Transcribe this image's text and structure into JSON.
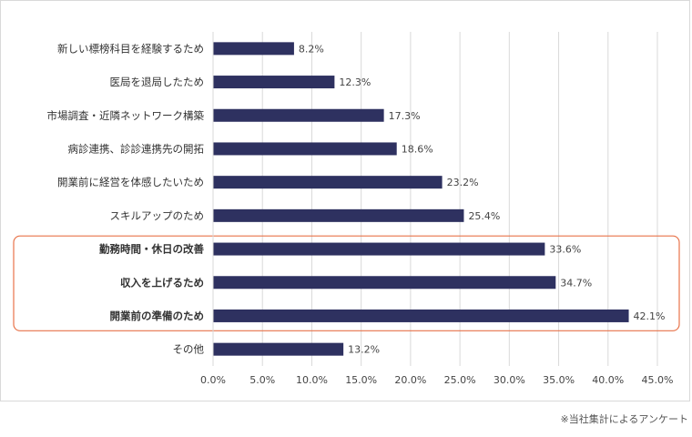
{
  "chart_data": {
    "type": "bar",
    "orientation": "horizontal",
    "categories": [
      "新しい標榜科目を経験するため",
      "医局を退局したため",
      "市場調査・近隣ネットワーク構築",
      "病診連携、診診連携先の開拓",
      "開業前に経営を体感したいため",
      "スキルアップのため",
      "勤務時間・休日の改善",
      "収入を上げるため",
      "開業前の準備のため",
      "その他"
    ],
    "values": [
      8.2,
      12.3,
      17.3,
      18.6,
      23.2,
      25.4,
      33.6,
      34.7,
      42.1,
      13.2
    ],
    "value_labels": [
      "8.2%",
      "12.3%",
      "17.3%",
      "18.6%",
      "23.2%",
      "25.4%",
      "33.6%",
      "34.7%",
      "42.1%",
      "13.2%"
    ],
    "bold_categories": [
      "勤務時間・休日の改善",
      "収入を上げるため",
      "開業前の準備のため"
    ],
    "highlight_group": [
      "勤務時間・休日の改善",
      "収入を上げるため",
      "開業前の準備のため"
    ],
    "xlim": [
      0,
      45
    ],
    "xticks": [
      0,
      5,
      10,
      15,
      20,
      25,
      30,
      35,
      40,
      45
    ],
    "xtick_labels": [
      "0.0%",
      "5.0%",
      "10.0%",
      "15.0%",
      "20.0%",
      "25.0%",
      "30.0%",
      "35.0%",
      "40.0%",
      "45.0%"
    ],
    "grid": "vertical",
    "title": "",
    "xlabel": "",
    "ylabel": "",
    "colors": {
      "bar": "#2e3160",
      "grid": "#d9d9d9",
      "highlight_border": "#e8734a"
    }
  },
  "footnote": "※当社集計によるアンケート"
}
